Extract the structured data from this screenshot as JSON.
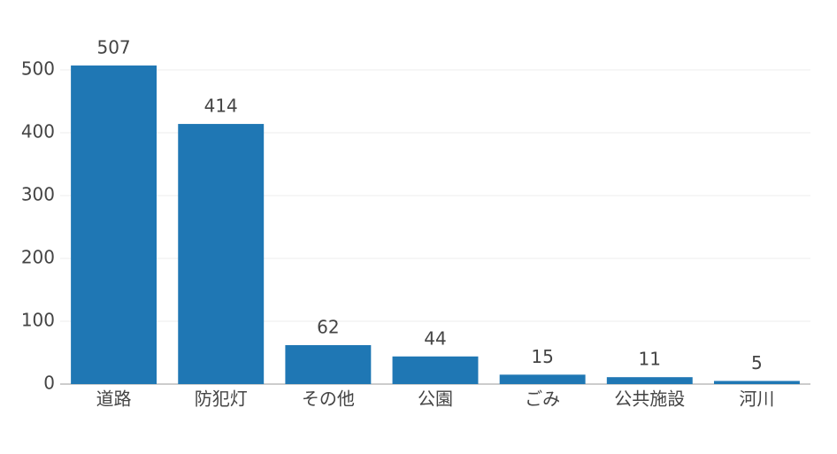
{
  "chart_data": {
    "type": "bar",
    "categories": [
      "道路",
      "防犯灯",
      "その他",
      "公園",
      "ごみ",
      "公共施設",
      "河川"
    ],
    "values": [
      507,
      414,
      62,
      44,
      15,
      11,
      5
    ],
    "color": "#1f77b4",
    "ylim": [
      0,
      540
    ],
    "yticks": [
      0,
      100,
      200,
      300,
      400,
      500
    ],
    "grid": true
  }
}
